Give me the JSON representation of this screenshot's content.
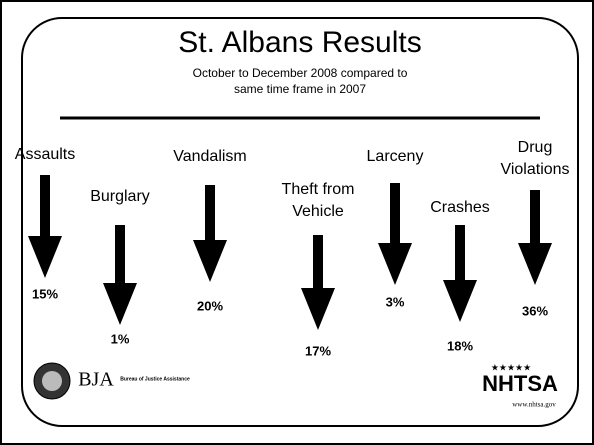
{
  "header": {
    "title": "St. Albans Results",
    "subtitle_lines": [
      "October to December 2008 compared to",
      "same time frame in 2007"
    ]
  },
  "items": [
    {
      "label_lines": [
        "Assaults"
      ],
      "value": "15%"
    },
    {
      "label_lines": [
        "Burglary"
      ],
      "value": "1%"
    },
    {
      "label_lines": [
        "Vandalism"
      ],
      "value": "20%"
    },
    {
      "label_lines": [
        "Theft from",
        "Vehicle"
      ],
      "value": "17%"
    },
    {
      "label_lines": [
        "Larceny"
      ],
      "value": "3%"
    },
    {
      "label_lines": [
        "Crashes"
      ],
      "value": "18%"
    },
    {
      "label_lines": [
        "Drug",
        "Violations"
      ],
      "value": "36%"
    }
  ],
  "logos": {
    "bja": "BJA",
    "bja_name": "Bureau of Justice Assistance",
    "nhtsa": "NHTSA",
    "nhtsa_url": "www.nhtsa.gov"
  }
}
